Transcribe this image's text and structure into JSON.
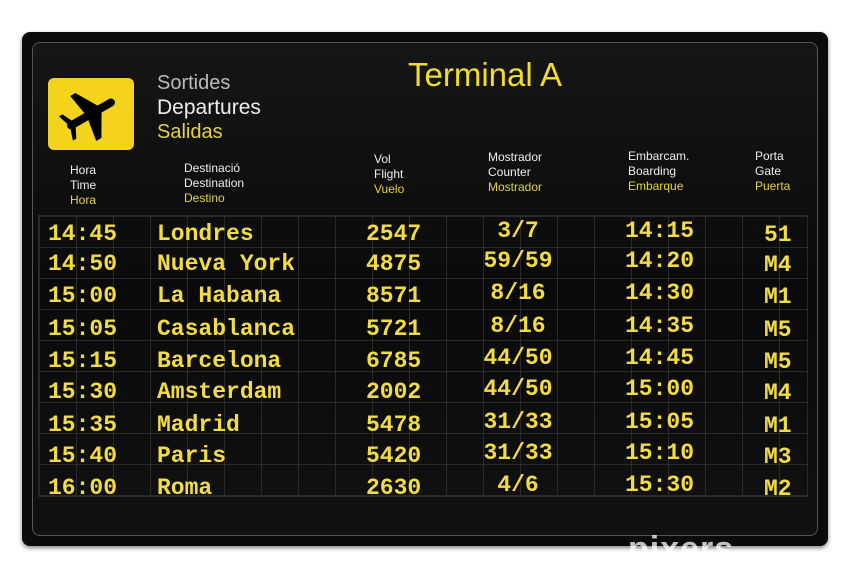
{
  "board": {
    "title": "Terminal A",
    "heading": {
      "catalan": "Sortides",
      "english": "Departures",
      "spanish": "Salidas"
    },
    "logo_icon": "airplane-departure-icon",
    "columns": [
      {
        "ca": "Hora",
        "en": "Time",
        "es": "Hora"
      },
      {
        "ca": "Destinació",
        "en": "Destination",
        "es": "Destino"
      },
      {
        "ca": "Vol",
        "en": "Flight",
        "es": "Vuelo"
      },
      {
        "ca": "Mostrador",
        "en": "Counter",
        "es": "Mostrador"
      },
      {
        "ca": "Embarcam.",
        "en": "Boarding",
        "es": "Embarque"
      },
      {
        "ca": "Porta",
        "en": "Gate",
        "es": "Puerta"
      }
    ],
    "rows": [
      {
        "time": "14:45",
        "dest": "Londres",
        "flight": "2547",
        "counter": "3/7",
        "boarding": "14:15",
        "gate": "51"
      },
      {
        "time": "14:50",
        "dest": "Nueva York",
        "flight": "4875",
        "counter": "59/59",
        "boarding": "14:20",
        "gate": "M4"
      },
      {
        "time": "15:00",
        "dest": "La Habana",
        "flight": "8571",
        "counter": "8/16",
        "boarding": "14:30",
        "gate": "M1"
      },
      {
        "time": "15:05",
        "dest": "Casablanca",
        "flight": "5721",
        "counter": "8/16",
        "boarding": "14:35",
        "gate": "M5"
      },
      {
        "time": "15:15",
        "dest": "Barcelona",
        "flight": "6785",
        "counter": "44/50",
        "boarding": "14:45",
        "gate": "M5"
      },
      {
        "time": "15:30",
        "dest": "Amsterdam",
        "flight": "2002",
        "counter": "44/50",
        "boarding": "15:00",
        "gate": "M4"
      },
      {
        "time": "15:35",
        "dest": "Madrid",
        "flight": "5478",
        "counter": "31/33",
        "boarding": "15:05",
        "gate": "M1"
      },
      {
        "time": "15:40",
        "dest": "Paris",
        "flight": "5420",
        "counter": "31/33",
        "boarding": "15:10",
        "gate": "M3"
      },
      {
        "time": "16:00",
        "dest": "Roma",
        "flight": "2630",
        "counter": "4/6",
        "boarding": "15:30",
        "gate": "M2"
      }
    ],
    "colors": {
      "yellow": "#f2dc45",
      "background": "#0b0b0b"
    }
  },
  "watermark": "pixers"
}
